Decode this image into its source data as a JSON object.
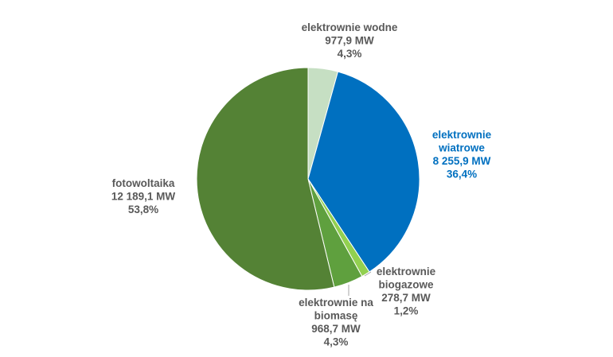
{
  "chart_data": {
    "type": "pie",
    "title": "",
    "slices": [
      {
        "lines": [
          "elektrownie wodne",
          "977,9 MW",
          "4,3%"
        ],
        "value": 977.9,
        "percent": 4.3,
        "color": "#c6dfc3",
        "label_color": "#595959"
      },
      {
        "lines": [
          "elektrownie",
          "wiatrowe",
          "8 255,9 MW",
          "36,4%"
        ],
        "value": 8255.9,
        "percent": 36.4,
        "color": "#0070c0",
        "label_color": "#0070c0"
      },
      {
        "lines": [
          "elektrownie",
          "biogazowe",
          "278,7 MW",
          "1,2%"
        ],
        "value": 278.7,
        "percent": 1.2,
        "color": "#92d050",
        "label_color": "#595959"
      },
      {
        "lines": [
          "elektrownie na",
          "biomasę",
          "968,7 MW",
          "4,3%"
        ],
        "value": 968.7,
        "percent": 4.3,
        "color": "#5fa03e",
        "label_color": "#595959"
      },
      {
        "lines": [
          "fotowoltaika",
          "12 189,1 MW",
          "53,8%"
        ],
        "value": 12189.1,
        "percent": 53.8,
        "color": "#548235",
        "label_color": "#595959"
      }
    ],
    "legend": "none",
    "label_placement": "outside"
  }
}
